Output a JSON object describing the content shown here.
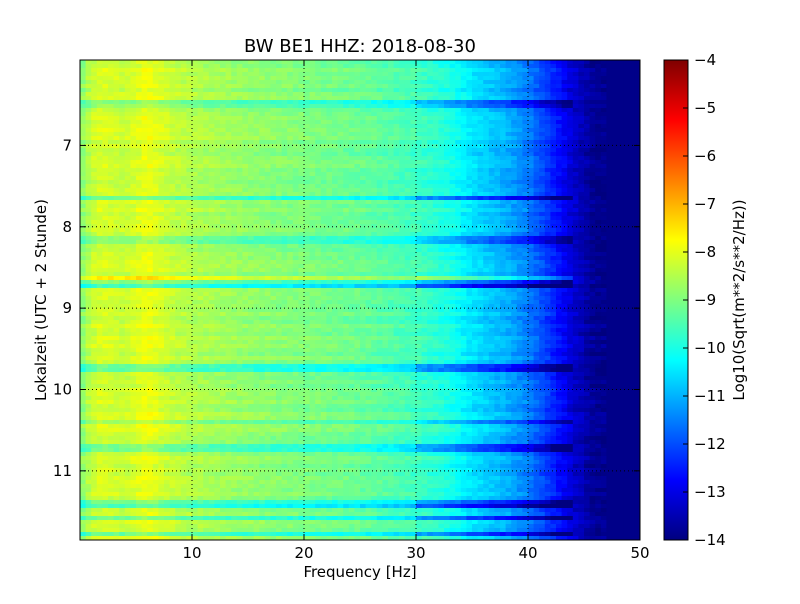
{
  "chart_data": {
    "type": "heatmap",
    "title": "BW BE1 HHZ: 2018-08-30",
    "xlabel": "Frequency [Hz]",
    "ylabel": "Lokalzeit (UTC + 2 Stunde)",
    "colorbar_label": "Log10(Sqrt(m**2/s**2/Hz))",
    "xlim": [
      0,
      50
    ],
    "ylim": [
      5.95,
      11.85
    ],
    "y_inverted": true,
    "x_ticks": [
      10,
      20,
      30,
      40,
      50
    ],
    "x_tick_labels": [
      "10",
      "20",
      "30",
      "40",
      "50"
    ],
    "y_ticks": [
      7,
      8,
      9,
      10,
      11
    ],
    "y_tick_labels": [
      "7",
      "8",
      "9",
      "10",
      "11"
    ],
    "colorbar_range": [
      -14,
      -4
    ],
    "colorbar_ticks": [
      -4,
      -5,
      -6,
      -7,
      -8,
      -9,
      -10,
      -11,
      -12,
      -13,
      -14
    ],
    "colorbar_tick_labels": [
      "−4",
      "−5",
      "−6",
      "−7",
      "−8",
      "−9",
      "−10",
      "−11",
      "−12",
      "−13",
      "−14"
    ],
    "colormap": "jet",
    "grid": true,
    "frequency_profile": {
      "freq": [
        0,
        1,
        2,
        4,
        6,
        8,
        10,
        15,
        20,
        25,
        30,
        33,
        35,
        38,
        40,
        42,
        44,
        46,
        50
      ],
      "log_psd": [
        -9.0,
        -8.3,
        -8.1,
        -8.3,
        -7.9,
        -8.3,
        -8.5,
        -8.8,
        -9.0,
        -9.2,
        -9.6,
        -10.0,
        -10.5,
        -11.0,
        -11.5,
        -12.3,
        -13.2,
        -13.85,
        -13.9
      ]
    },
    "time_bands": [
      {
        "hour": 6.5,
        "offset": -0.7
      },
      {
        "hour": 7.65,
        "offset": -1.0
      },
      {
        "hour": 8.15,
        "offset": -0.6
      },
      {
        "hour": 8.65,
        "offset": 0.5
      },
      {
        "hour": 8.72,
        "offset": -1.3
      },
      {
        "hour": 9.75,
        "offset": -0.9
      },
      {
        "hour": 10.4,
        "offset": -0.6
      },
      {
        "hour": 10.7,
        "offset": -0.9
      },
      {
        "hour": 11.38,
        "offset": 0.6
      },
      {
        "hour": 11.42,
        "offset": -1.4
      },
      {
        "hour": 11.58,
        "offset": -1.1
      },
      {
        "hour": 11.78,
        "offset": -0.9
      }
    ]
  },
  "colors": {
    "jet_stops": [
      "#00007f",
      "#0000ff",
      "#007fff",
      "#00ffff",
      "#7fff7f",
      "#ffff00",
      "#ff7f00",
      "#ff0000",
      "#7f0000"
    ]
  }
}
